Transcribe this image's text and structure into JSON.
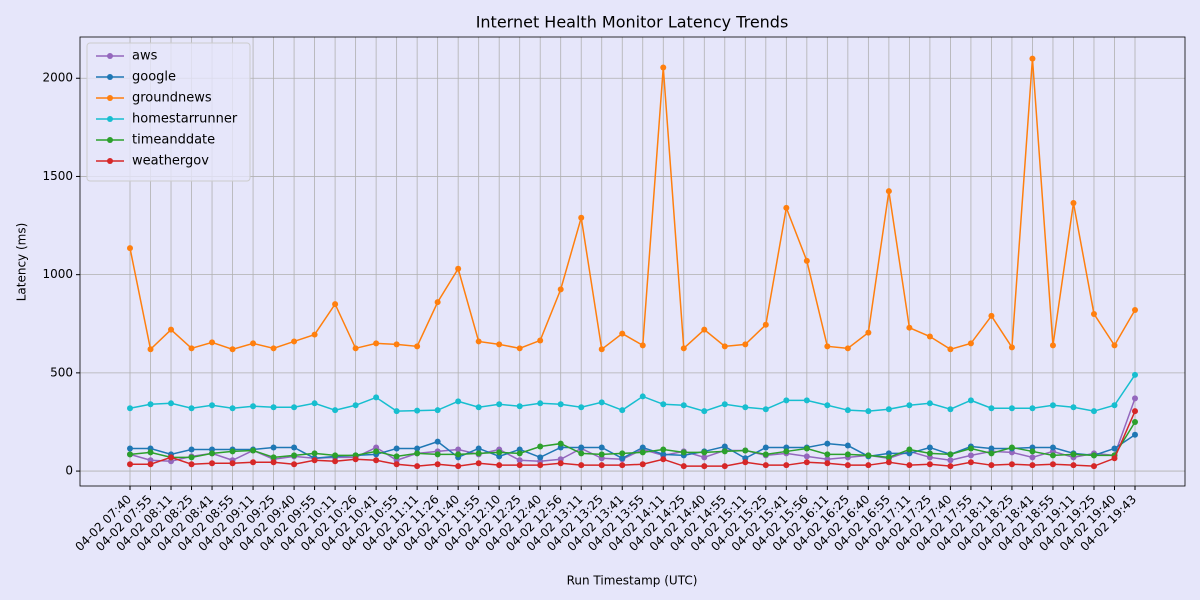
{
  "chart_data": {
    "type": "line",
    "title": "Internet Health Monitor Latency Trends",
    "x_label": "Run Timestamp (UTC)",
    "y_label": "Latency (ms)",
    "categories": [
      "04-02 07:40",
      "04-02 07:55",
      "04-02 08:11",
      "04-02 08:25",
      "04-02 08:41",
      "04-02 08:55",
      "04-02 09:11",
      "04-02 09:25",
      "04-02 09:40",
      "04-02 09:55",
      "04-02 10:11",
      "04-02 10:26",
      "04-02 10:41",
      "04-02 10:55",
      "04-02 11:11",
      "04-02 11:26",
      "04-02 11:40",
      "04-02 11:55",
      "04-02 12:10",
      "04-02 12:25",
      "04-02 12:40",
      "04-02 12:56",
      "04-02 13:11",
      "04-02 13:25",
      "04-02 13:41",
      "04-02 13:55",
      "04-02 14:11",
      "04-02 14:25",
      "04-02 14:40",
      "04-02 14:55",
      "04-02 15:11",
      "04-02 15:25",
      "04-02 15:41",
      "04-02 15:56",
      "04-02 16:11",
      "04-02 16:25",
      "04-02 16:40",
      "04-02 16:55",
      "04-02 17:11",
      "04-02 17:25",
      "04-02 17:40",
      "04-02 17:55",
      "04-02 18:11",
      "04-02 18:25",
      "04-02 18:41",
      "04-02 18:55",
      "04-02 19:11",
      "04-02 19:25",
      "04-02 19:40",
      "04-02 19:43"
    ],
    "series": [
      {
        "name": "aws",
        "color": "#9467bd",
        "values": [
          85,
          55,
          50,
          75,
          90,
          55,
          105,
          60,
          75,
          65,
          70,
          70,
          120,
          55,
          90,
          100,
          110,
          85,
          110,
          55,
          50,
          60,
          115,
          65,
          60,
          110,
          80,
          100,
          70,
          105,
          105,
          80,
          90,
          75,
          60,
          70,
          80,
          65,
          100,
          70,
          55,
          80,
          100,
          95,
          70,
          100,
          70,
          90,
          80,
          370
        ]
      },
      {
        "name": "google",
        "color": "#1f77b4",
        "values": [
          115,
          115,
          85,
          110,
          110,
          110,
          110,
          120,
          120,
          65,
          75,
          80,
          85,
          115,
          115,
          150,
          70,
          115,
          75,
          110,
          70,
          120,
          120,
          120,
          65,
          120,
          85,
          80,
          100,
          125,
          65,
          120,
          120,
          120,
          140,
          130,
          75,
          90,
          90,
          120,
          85,
          125,
          115,
          115,
          120,
          120,
          90,
          80,
          115,
          185
        ]
      },
      {
        "name": "groundnews",
        "color": "#ff7f0e",
        "values": [
          1135,
          620,
          720,
          625,
          655,
          620,
          650,
          625,
          660,
          695,
          850,
          625,
          650,
          645,
          635,
          860,
          1030,
          660,
          645,
          625,
          665,
          925,
          1290,
          620,
          700,
          640,
          2055,
          625,
          720,
          635,
          645,
          745,
          1340,
          1070,
          635,
          625,
          705,
          1425,
          730,
          685,
          620,
          650,
          790,
          630,
          2100,
          640,
          1365,
          800,
          640,
          820
        ]
      },
      {
        "name": "homestarrunner",
        "color": "#17becf",
        "values": [
          320,
          340,
          345,
          320,
          335,
          320,
          330,
          325,
          325,
          345,
          310,
          335,
          375,
          305,
          308,
          310,
          355,
          325,
          340,
          330,
          345,
          340,
          325,
          350,
          310,
          380,
          340,
          335,
          305,
          340,
          325,
          315,
          360,
          360,
          335,
          310,
          305,
          315,
          335,
          345,
          315,
          360,
          320,
          320,
          320,
          335,
          325,
          305,
          335,
          490
        ]
      },
      {
        "name": "timeanddate",
        "color": "#2ca02c",
        "values": [
          85,
          95,
          70,
          70,
          90,
          100,
          105,
          70,
          80,
          90,
          80,
          80,
          100,
          75,
          90,
          85,
          85,
          90,
          95,
          90,
          125,
          140,
          90,
          85,
          90,
          95,
          110,
          95,
          95,
          100,
          105,
          85,
          100,
          115,
          85,
          85,
          80,
          70,
          110,
          90,
          85,
          115,
          90,
          120,
          100,
          80,
          85,
          80,
          80,
          250
        ]
      },
      {
        "name": "weathergov",
        "color": "#d62728",
        "values": [
          35,
          35,
          70,
          35,
          40,
          40,
          45,
          45,
          35,
          55,
          50,
          60,
          55,
          35,
          25,
          35,
          25,
          40,
          30,
          30,
          30,
          40,
          30,
          30,
          30,
          35,
          60,
          25,
          25,
          25,
          45,
          30,
          30,
          45,
          40,
          30,
          30,
          45,
          30,
          35,
          25,
          45,
          30,
          35,
          30,
          35,
          30,
          25,
          65,
          305
        ]
      }
    ],
    "ylim": [
      -76,
      2210
    ],
    "yticks": [
      0,
      500,
      1000,
      1500,
      2000
    ],
    "grid": true,
    "legend": "upper-left"
  }
}
